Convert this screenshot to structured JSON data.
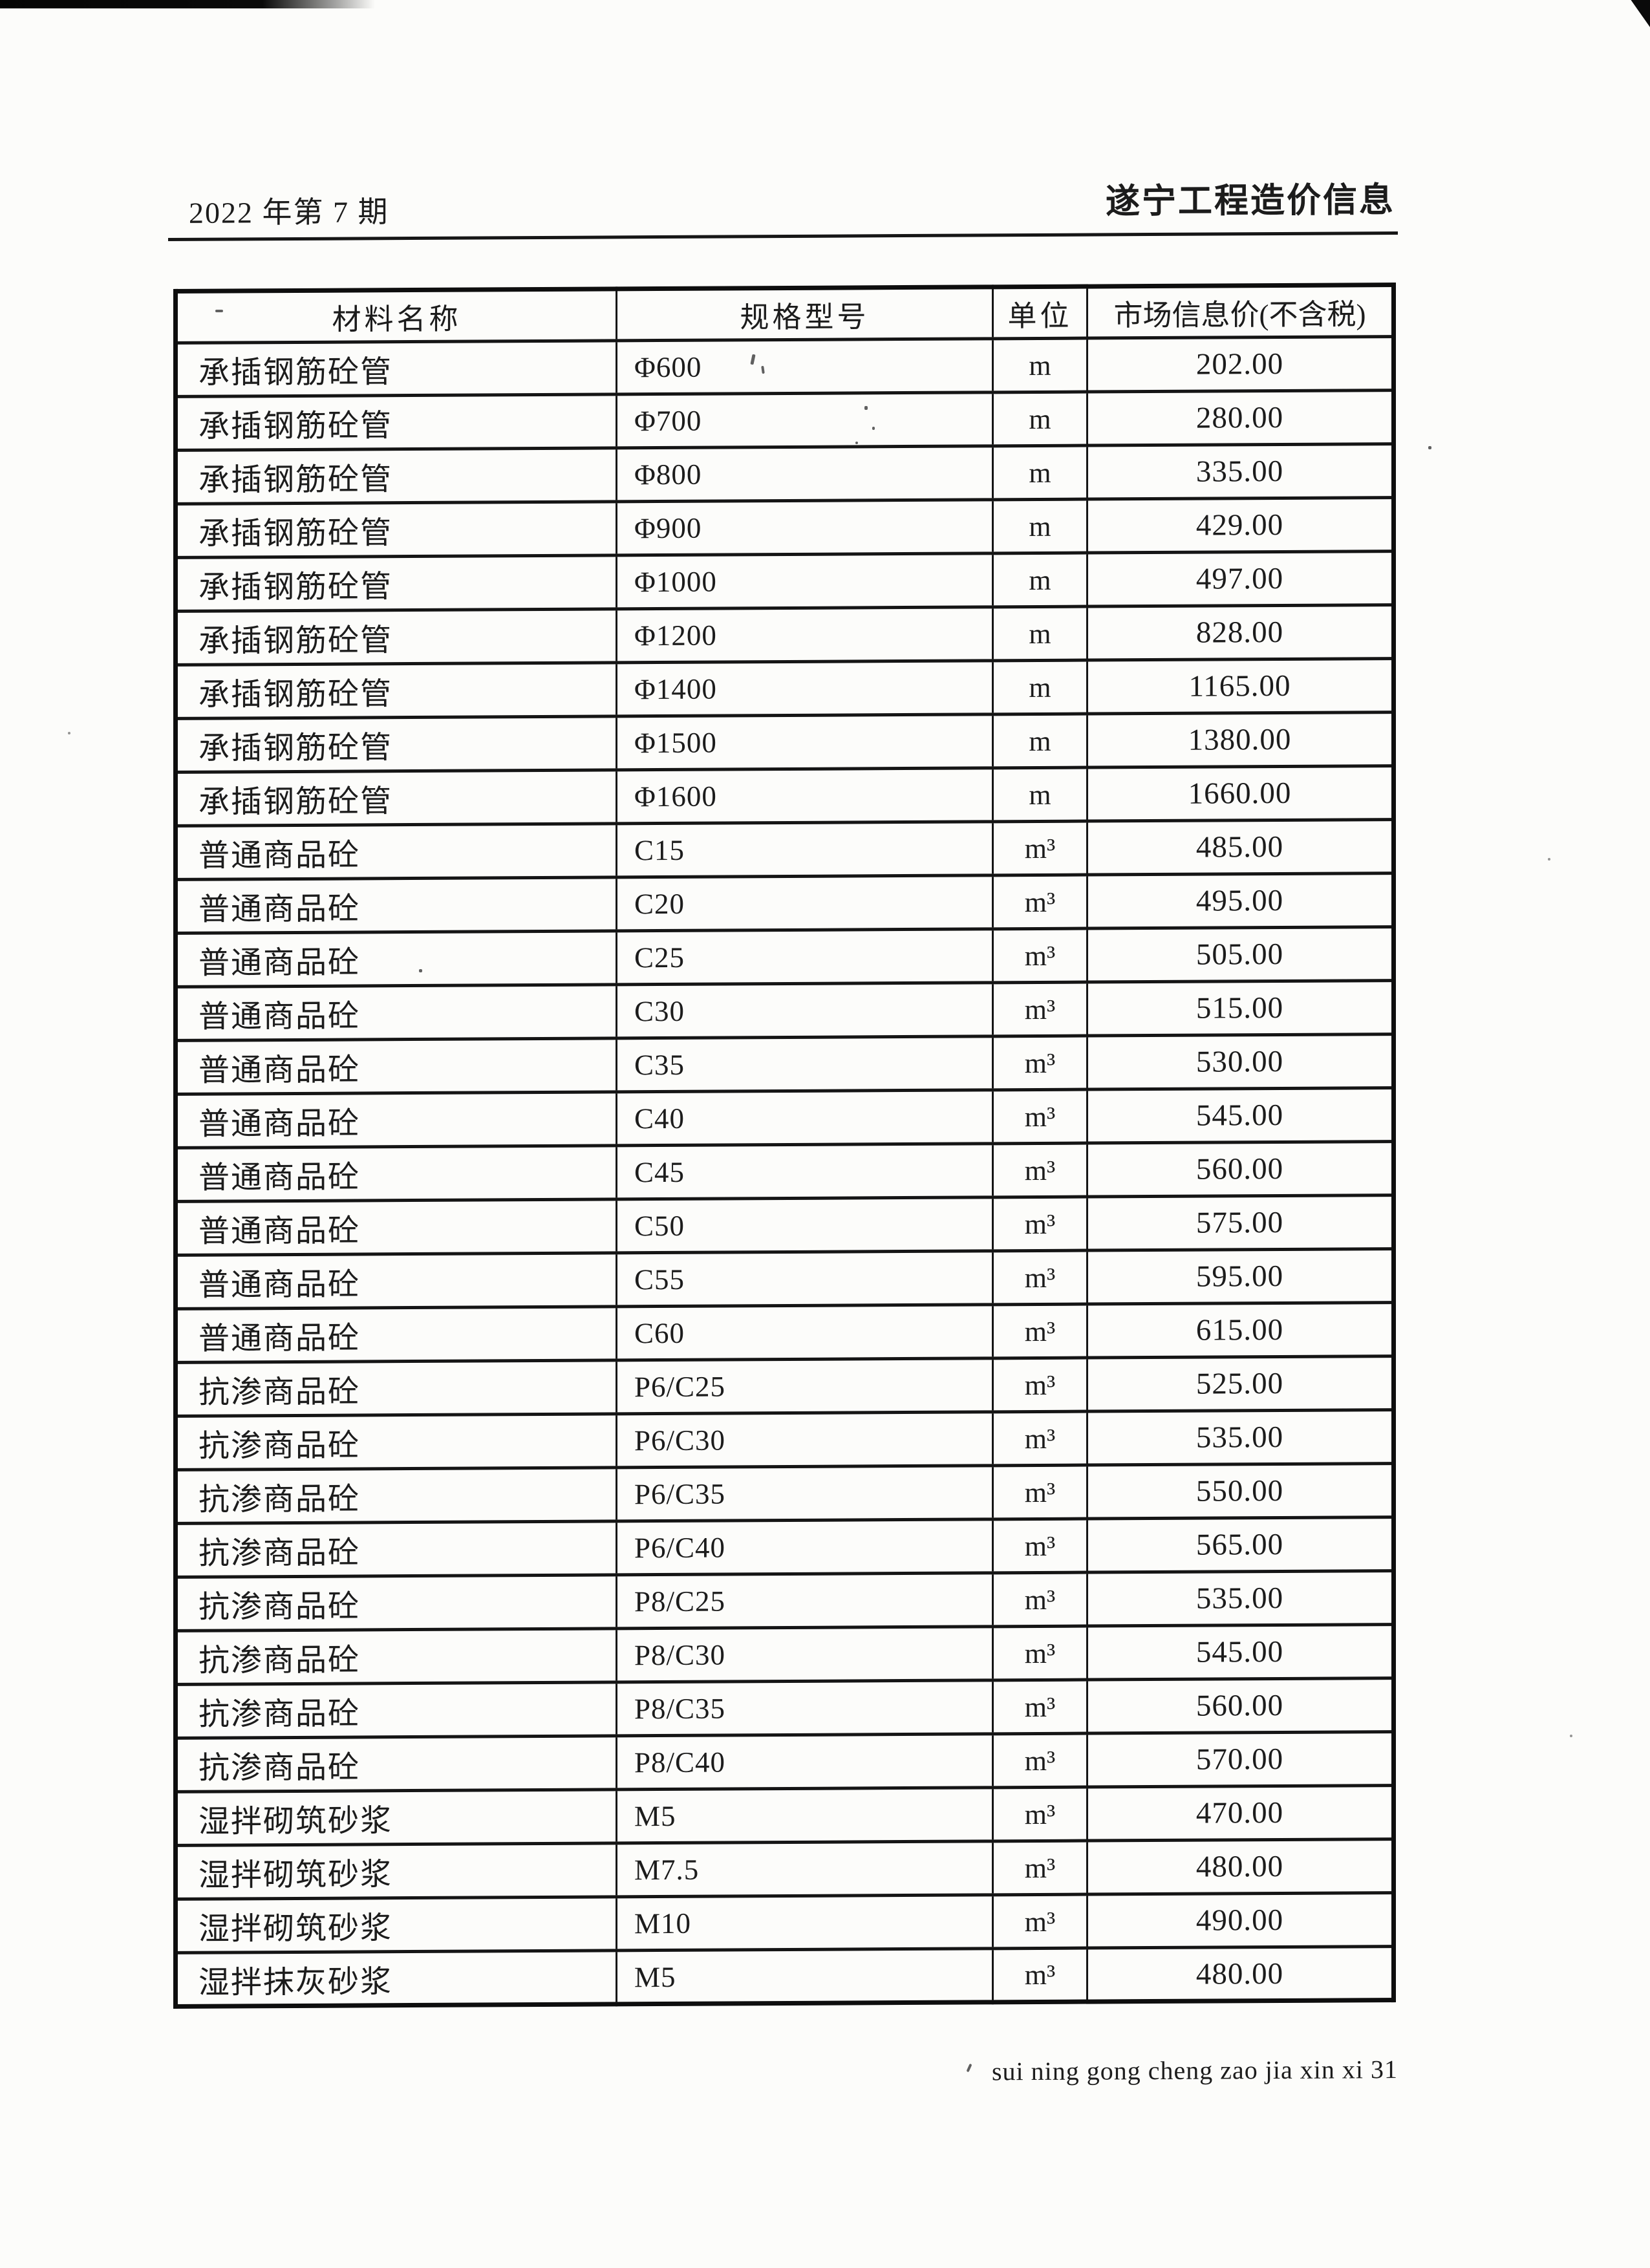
{
  "page": {
    "issue_label": "2022 年第 7 期",
    "publication_title": "遂宁工程造价信息",
    "footer_text": "sui ning gong cheng zao jia xin xi 31"
  },
  "colors": {
    "ink": "#1c1c1c",
    "table_line": "#151515",
    "paper": "#fcfcfa"
  },
  "table": {
    "headers": [
      "材料名称",
      "规格型号",
      "单位",
      "市场信息价(不含税)"
    ],
    "rows": [
      {
        "name": "承插钢筋砼管",
        "spec": "Φ600",
        "unit": "m",
        "price": "202.00"
      },
      {
        "name": "承插钢筋砼管",
        "spec": "Φ700",
        "unit": "m",
        "price": "280.00"
      },
      {
        "name": "承插钢筋砼管",
        "spec": "Φ800",
        "unit": "m",
        "price": "335.00"
      },
      {
        "name": "承插钢筋砼管",
        "spec": "Φ900",
        "unit": "m",
        "price": "429.00"
      },
      {
        "name": "承插钢筋砼管",
        "spec": "Φ1000",
        "unit": "m",
        "price": "497.00"
      },
      {
        "name": "承插钢筋砼管",
        "spec": "Φ1200",
        "unit": "m",
        "price": "828.00"
      },
      {
        "name": "承插钢筋砼管",
        "spec": "Φ1400",
        "unit": "m",
        "price": "1165.00"
      },
      {
        "name": "承插钢筋砼管",
        "spec": "Φ1500",
        "unit": "m",
        "price": "1380.00"
      },
      {
        "name": "承插钢筋砼管",
        "spec": "Φ1600",
        "unit": "m",
        "price": "1660.00"
      },
      {
        "name": "普通商品砼",
        "spec": "C15",
        "unit": "m³",
        "price": "485.00"
      },
      {
        "name": "普通商品砼",
        "spec": "C20",
        "unit": "m³",
        "price": "495.00"
      },
      {
        "name": "普通商品砼",
        "spec": "C25",
        "unit": "m³",
        "price": "505.00"
      },
      {
        "name": "普通商品砼",
        "spec": "C30",
        "unit": "m³",
        "price": "515.00"
      },
      {
        "name": "普通商品砼",
        "spec": "C35",
        "unit": "m³",
        "price": "530.00"
      },
      {
        "name": "普通商品砼",
        "spec": "C40",
        "unit": "m³",
        "price": "545.00"
      },
      {
        "name": "普通商品砼",
        "spec": "C45",
        "unit": "m³",
        "price": "560.00"
      },
      {
        "name": "普通商品砼",
        "spec": "C50",
        "unit": "m³",
        "price": "575.00"
      },
      {
        "name": "普通商品砼",
        "spec": "C55",
        "unit": "m³",
        "price": "595.00"
      },
      {
        "name": "普通商品砼",
        "spec": "C60",
        "unit": "m³",
        "price": "615.00"
      },
      {
        "name": "抗渗商品砼",
        "spec": "P6/C25",
        "unit": "m³",
        "price": "525.00"
      },
      {
        "name": "抗渗商品砼",
        "spec": "P6/C30",
        "unit": "m³",
        "price": "535.00"
      },
      {
        "name": "抗渗商品砼",
        "spec": "P6/C35",
        "unit": "m³",
        "price": "550.00"
      },
      {
        "name": "抗渗商品砼",
        "spec": "P6/C40",
        "unit": "m³",
        "price": "565.00"
      },
      {
        "name": "抗渗商品砼",
        "spec": "P8/C25",
        "unit": "m³",
        "price": "535.00"
      },
      {
        "name": "抗渗商品砼",
        "spec": "P8/C30",
        "unit": "m³",
        "price": "545.00"
      },
      {
        "name": "抗渗商品砼",
        "spec": "P8/C35",
        "unit": "m³",
        "price": "560.00"
      },
      {
        "name": "抗渗商品砼",
        "spec": "P8/C40",
        "unit": "m³",
        "price": "570.00"
      },
      {
        "name": "湿拌砌筑砂浆",
        "spec": "M5",
        "unit": "m³",
        "price": "470.00"
      },
      {
        "name": "湿拌砌筑砂浆",
        "spec": "M7.5",
        "unit": "m³",
        "price": "480.00"
      },
      {
        "name": "湿拌砌筑砂浆",
        "spec": "M10",
        "unit": "m³",
        "price": "490.00"
      },
      {
        "name": "湿拌抹灰砂浆",
        "spec": "M5",
        "unit": "m³",
        "price": "480.00"
      }
    ]
  }
}
